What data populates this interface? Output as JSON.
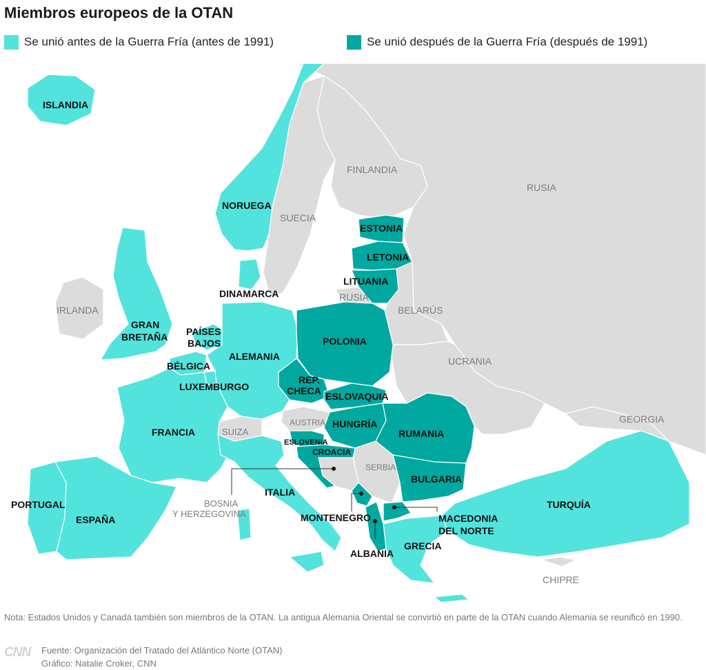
{
  "title": "Miembros europeos de la OTAN",
  "legend": [
    {
      "label": "Se unió antes de la Guerra Fría (antes de 1991)",
      "color": "#52e3dc"
    },
    {
      "label": "Se unió después de la Guerra Fría (después de 1991)",
      "color": "#00a89f"
    }
  ],
  "colors": {
    "non_member": "#dcdcdc",
    "sea": "#ffffff",
    "border": "#ffffff"
  },
  "countries_before_1991": [
    "ISLANDIA",
    "NORUEGA",
    "DINAMARCA",
    "GRAN BRETAÑA",
    "PAÍSES BAJOS",
    "BÉLGICA",
    "LUXEMBURGO",
    "ALEMANIA",
    "FRANCIA",
    "PORTUGAL",
    "ESPAÑA",
    "ITALIA",
    "GRECIA",
    "TURQUÍA"
  ],
  "countries_after_1991": [
    "ESTONIA",
    "LETONIA",
    "LITUANIA",
    "POLONIA",
    "REP. CHECA",
    "ESLOVAQUIA",
    "HUNGRÍA",
    "RUMANIA",
    "BULGARIA",
    "ESLOVENIA",
    "CROACIA",
    "MONTENEGRO",
    "ALBANIA",
    "MACEDONIA DEL NORTE"
  ],
  "non_members": [
    "IRLANDA",
    "SUECIA",
    "FINLANDIA",
    "RUSIA",
    "BELARÚS",
    "UCRANIA",
    "AUSTRIA",
    "SUIZA",
    "SERBIA",
    "BOSNIA Y HERZEGOVINA",
    "GEORGIA",
    "CHIPRE"
  ],
  "labels": {
    "islandia": "ISLANDIA",
    "noruega": "NORUEGA",
    "dinamarca": "DINAMARCA",
    "gran_bretana_1": "GRAN",
    "gran_bretana_2": "BRETAÑA",
    "paises_bajos_1": "PAÍSES",
    "paises_bajos_2": "BAJOS",
    "belgica": "BÉLGICA",
    "luxemburgo": "LUXEMBURGO",
    "alemania": "ALEMANIA",
    "francia": "FRANCIA",
    "portugal": "PORTUGAL",
    "espana": "ESPAÑA",
    "italia": "ITALIA",
    "grecia": "GRECIA",
    "turquia": "TURQUÍA",
    "estonia": "ESTONIA",
    "letonia": "LETONIA",
    "lituania": "LITUANIA",
    "polonia": "POLONIA",
    "rep_checa_1": "REP.",
    "rep_checa_2": "CHECA",
    "eslovaquia": "ESLOVAQUIA",
    "hungria": "HUNGRÍA",
    "rumania": "RUMANIA",
    "bulgaria": "BULGARIA",
    "eslovenia": "ESLOVENIA",
    "croacia": "CROACIA",
    "montenegro": "MONTENEGRO",
    "albania": "ALBANIA",
    "macedonia_1": "MACEDONIA",
    "macedonia_2": "DEL NORTE",
    "irlanda": "IRLANDA",
    "suecia": "SUECIA",
    "finlandia": "FINLANDIA",
    "rusia": "RUSIA",
    "rusia_kal": "RUSIA",
    "belarus": "BELARÚS",
    "ucrania": "UCRANIA",
    "austria": "AUSTRIA",
    "suiza": "SUIZA",
    "serbia": "SERBIA",
    "bosnia_1": "BOSNIA",
    "bosnia_2": "Y HERZEGOVINA",
    "georgia": "GEORGIA",
    "chipre": "CHIPRE"
  },
  "note": "Nota: Estados Unidos y Canadá también son miembros de la OTAN. La antigua Alemania Oriental se convirtió en parte de la OTAN cuando Alemania se reunificó en 1990.",
  "logo": "CNN",
  "source": "Fuente: Organización del Tratado del Atlántico Norte (OTAN)",
  "credit": "Gráfico: Natalie Croker, CNN"
}
